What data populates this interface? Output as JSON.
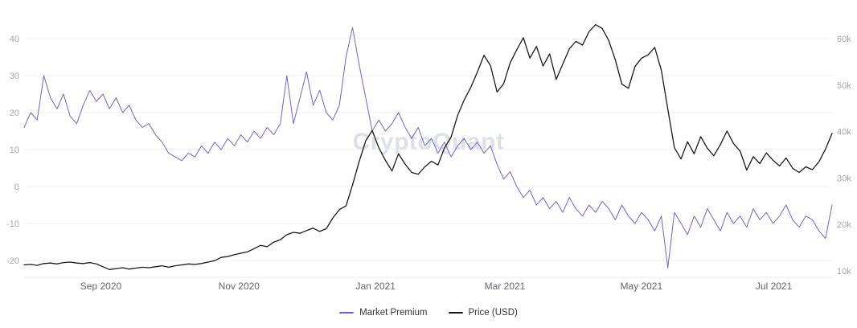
{
  "watermark": "CryptoQuant",
  "legend": [
    {
      "label": "Market Premium",
      "color": "#6e62e0"
    },
    {
      "label": "Price (USD)",
      "color": "#17191c"
    }
  ],
  "chart_data": {
    "type": "line",
    "title": "",
    "legend_position": "bottom-center",
    "grid": "horizontal",
    "x_ticks": [
      {
        "label": "Sep 2020",
        "f": 0.095
      },
      {
        "label": "Nov 2020",
        "f": 0.266
      },
      {
        "label": "Jan 2021",
        "f": 0.435
      },
      {
        "label": "Mar 2021",
        "f": 0.595
      },
      {
        "label": "May 2021",
        "f": 0.764
      },
      {
        "label": "Jul 2021",
        "f": 0.928
      }
    ],
    "left_axis": {
      "title": "",
      "ticks": [
        -20,
        -10,
        0,
        10,
        20,
        30,
        40
      ],
      "tick_labels": [
        "-20",
        "-10",
        "0",
        "10",
        "20",
        "30",
        "40"
      ],
      "range": [
        -25,
        45
      ]
    },
    "right_axis": {
      "title": "",
      "ticks": [
        10000,
        20000,
        30000,
        40000,
        50000,
        60000
      ],
      "tick_labels": [
        "10k",
        "20k",
        "30k",
        "40k",
        "50k",
        "60k"
      ],
      "range": [
        8600,
        64000
      ]
    },
    "series": [
      {
        "name": "Market Premium",
        "axis": "left",
        "color": "#6e62e0",
        "values": [
          16,
          20,
          18,
          30,
          24,
          21,
          25,
          19,
          17,
          22,
          26,
          23,
          25,
          21,
          24,
          20,
          22,
          18,
          16,
          17,
          14,
          12,
          9,
          8,
          7,
          9,
          8,
          11,
          9,
          12,
          10,
          13,
          11,
          14,
          12,
          15,
          13,
          16,
          14,
          17,
          30,
          17,
          24,
          31,
          22,
          26,
          20,
          18,
          22,
          35,
          43,
          33,
          24,
          15,
          18,
          15,
          17,
          20,
          16,
          13,
          16,
          11,
          13,
          9,
          12,
          8,
          11,
          13,
          10,
          12,
          9,
          11,
          6,
          2,
          4,
          0,
          -3,
          -1,
          -5,
          -3,
          -6,
          -4,
          -7,
          -3,
          -6,
          -8,
          -5,
          -7,
          -4,
          -6,
          -9,
          -5,
          -8,
          -10,
          -7,
          -9,
          -12,
          -8,
          -22,
          -7,
          -10,
          -13,
          -8,
          -11,
          -6,
          -9,
          -12,
          -7,
          -10,
          -8,
          -11,
          -6,
          -9,
          -7,
          -10,
          -8,
          -5,
          -9,
          -11,
          -8,
          -9,
          -12,
          -14,
          -5
        ]
      },
      {
        "name": "Price (USD)",
        "axis": "right",
        "color": "#17191c",
        "values": [
          11300,
          11400,
          11200,
          11600,
          11700,
          11500,
          11800,
          11900,
          11700,
          11600,
          11800,
          11500,
          10900,
          10300,
          10500,
          10700,
          10400,
          10600,
          10800,
          10700,
          10900,
          11100,
          10800,
          11100,
          11300,
          11500,
          11400,
          11600,
          11900,
          12200,
          12900,
          13100,
          13500,
          13800,
          14100,
          14800,
          15500,
          15200,
          16200,
          16700,
          17800,
          18300,
          18100,
          18700,
          19200,
          18500,
          19100,
          21400,
          23200,
          24000,
          28500,
          33500,
          38000,
          40200,
          36500,
          33800,
          31500,
          35200,
          33000,
          31200,
          30800,
          32400,
          33600,
          32800,
          36500,
          38800,
          43500,
          46800,
          49500,
          52800,
          56400,
          54200,
          48500,
          50300,
          54800,
          57600,
          60200,
          55800,
          58300,
          54100,
          56700,
          51200,
          54500,
          57800,
          59400,
          58600,
          61500,
          63000,
          62200,
          59600,
          55400,
          50200,
          49300,
          54000,
          55800,
          56500,
          58100,
          53200,
          44800,
          36500,
          34100,
          37800,
          35200,
          38900,
          36400,
          34800,
          37200,
          40100,
          37400,
          35800,
          31700,
          34600,
          33100,
          35400,
          33800,
          32600,
          34300,
          32100,
          31200,
          32400,
          31800,
          33500,
          36200,
          39600
        ]
      }
    ]
  }
}
